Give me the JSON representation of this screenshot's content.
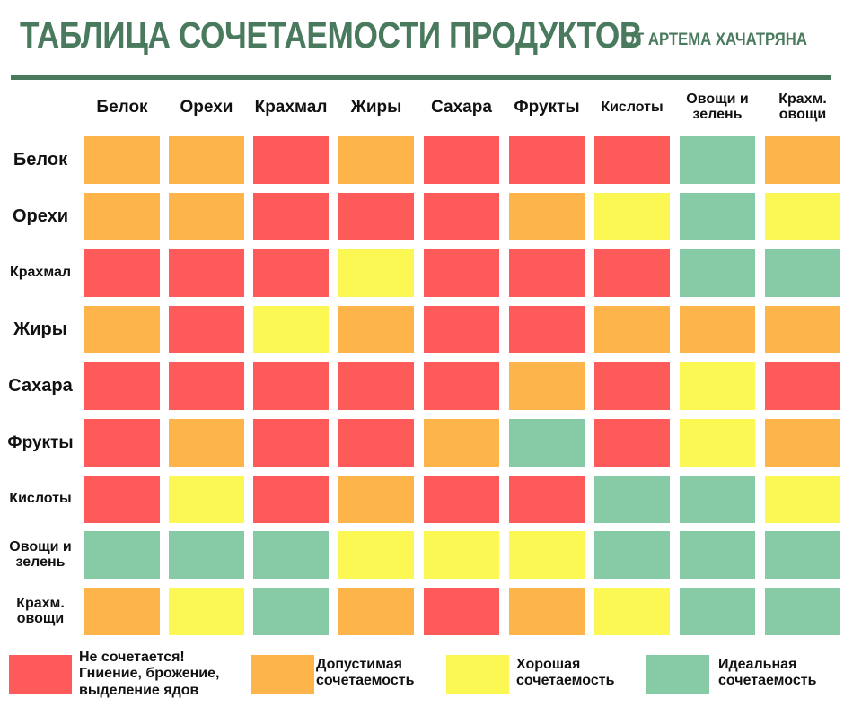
{
  "header": {
    "title": "ТАБЛИЦА СОЧЕТАЕМОСТИ ПРОДУКТОВ",
    "subtitle": "ОТ АРТЕМА ХАЧАТРЯНА"
  },
  "colors": {
    "red": "#ff5a5a",
    "orange": "#fdb44b",
    "yellow": "#fbf753",
    "green": "#87cba6",
    "accent": "#4a7a5e"
  },
  "chart_data": {
    "type": "heatmap",
    "title": "ТАБЛИЦА СОЧЕТАЕМОСТИ ПРОДУКТОВ",
    "x_categories": [
      "Белок",
      "Орехи",
      "Крахмал",
      "Жиры",
      "Сахара",
      "Фрукты",
      "Кислоты",
      "Овощи и зелень",
      "Крахм. овощи"
    ],
    "y_categories": [
      "Белок",
      "Орехи",
      "Крахмал",
      "Жиры",
      "Сахара",
      "Фрукты",
      "Кислоты",
      "Овощи и зелень",
      "Крахм. овощи"
    ],
    "values": [
      [
        "orange",
        "orange",
        "red",
        "orange",
        "red",
        "red",
        "red",
        "green",
        "orange"
      ],
      [
        "orange",
        "orange",
        "red",
        "red",
        "red",
        "orange",
        "yellow",
        "green",
        "yellow"
      ],
      [
        "red",
        "red",
        "red",
        "yellow",
        "red",
        "red",
        "red",
        "green",
        "green"
      ],
      [
        "orange",
        "red",
        "yellow",
        "orange",
        "red",
        "red",
        "orange",
        "orange",
        "orange"
      ],
      [
        "red",
        "red",
        "red",
        "red",
        "red",
        "orange",
        "red",
        "yellow",
        "red"
      ],
      [
        "red",
        "orange",
        "red",
        "red",
        "orange",
        "green",
        "red",
        "yellow",
        "orange"
      ],
      [
        "red",
        "yellow",
        "red",
        "orange",
        "red",
        "red",
        "green",
        "green",
        "yellow"
      ],
      [
        "green",
        "green",
        "green",
        "yellow",
        "yellow",
        "yellow",
        "green",
        "green",
        "green"
      ],
      [
        "orange",
        "yellow",
        "green",
        "orange",
        "red",
        "orange",
        "yellow",
        "green",
        "green"
      ]
    ],
    "legend": [
      {
        "key": "red",
        "label": "Не сочетается! Гниение, брожение, выделение ядов"
      },
      {
        "key": "orange",
        "label": "Допустимая сочетаемость"
      },
      {
        "key": "yellow",
        "label": "Хорошая сочетаемость"
      },
      {
        "key": "green",
        "label": "Идеальная сочетаемость"
      }
    ]
  }
}
